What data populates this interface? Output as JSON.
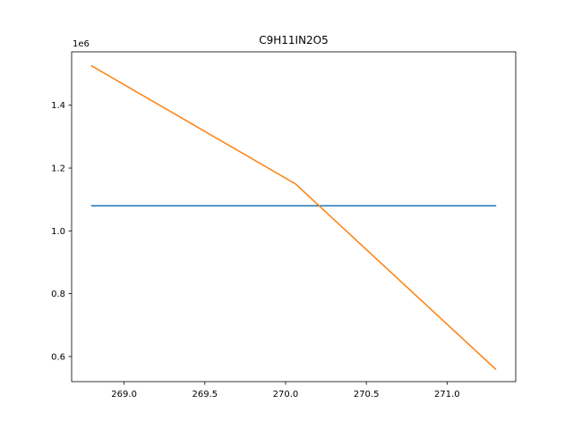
{
  "chart_data": {
    "type": "line",
    "title": "C9H11IN2O5",
    "xlabel": "",
    "ylabel": "",
    "y_offset_label": "1e6",
    "xlim": [
      268.675,
      271.425
    ],
    "ylim": [
      520000,
      1570000
    ],
    "x_ticks": [
      269.0,
      269.5,
      270.0,
      270.5,
      271.0
    ],
    "x_tick_labels": [
      "269.0",
      "269.5",
      "270.0",
      "270.5",
      "271.0"
    ],
    "y_ticks": [
      600000,
      800000,
      1000000,
      1200000,
      1400000
    ],
    "y_tick_labels": [
      "0.6",
      "0.8",
      "1.0",
      "1.2",
      "1.4"
    ],
    "grid": false,
    "series": [
      {
        "color": "#1f77b4",
        "x": [
          268.8,
          271.3
        ],
        "y": [
          1080000,
          1080000
        ]
      },
      {
        "color": "#ff7f0e",
        "x": [
          268.8,
          270.06,
          271.3
        ],
        "y": [
          1525000,
          1150000,
          560000
        ]
      }
    ]
  }
}
